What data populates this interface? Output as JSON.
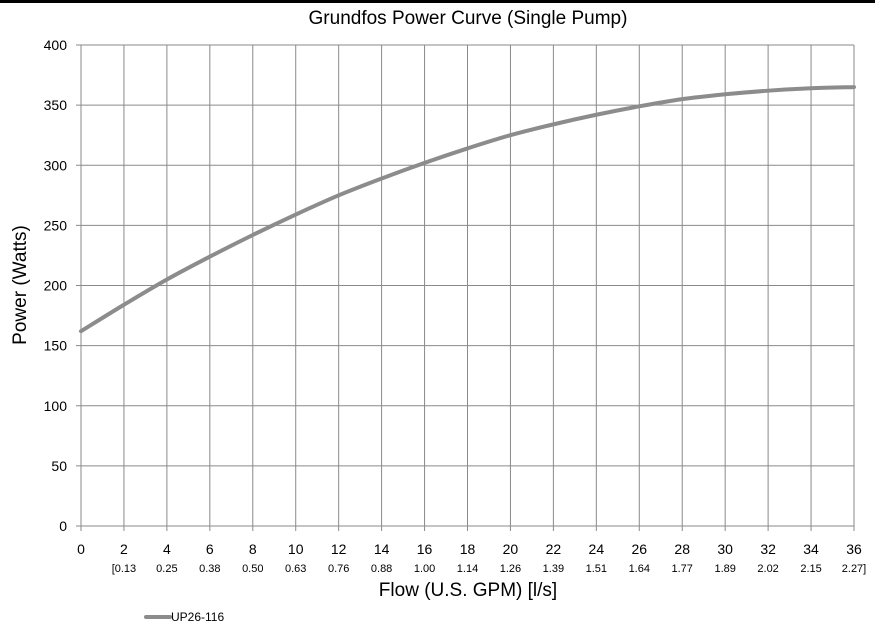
{
  "chart_data": {
    "type": "line",
    "title": "Grundfos Power Curve (Single Pump)",
    "xlabel": "Flow (U.S. GPM) [l/s]",
    "ylabel": "Power (Watts)",
    "xlim": [
      0,
      36
    ],
    "ylim": [
      0,
      400
    ],
    "grid": true,
    "legend_position": "bottom-left",
    "x_ticks": [
      0,
      2,
      4,
      6,
      8,
      10,
      12,
      14,
      16,
      18,
      20,
      22,
      24,
      26,
      28,
      30,
      32,
      34,
      36
    ],
    "x_secondary_ticks": [
      "[0.13",
      "0.25",
      "0.38",
      "0.50",
      "0.63",
      "0.76",
      "0.88",
      "1.00",
      "1.14",
      "1.26",
      "1.39",
      "1.51",
      "1.64",
      "1.77",
      "1.89",
      "2.02",
      "2.15",
      "2.27]"
    ],
    "y_ticks": [
      0,
      50,
      100,
      150,
      200,
      250,
      300,
      350,
      400
    ],
    "series": [
      {
        "name": "UP26-116",
        "color": "#8c8c8c",
        "x": [
          0,
          2,
          4,
          6,
          8,
          10,
          12,
          14,
          16,
          18,
          20,
          22,
          24,
          26,
          28,
          30,
          32,
          34,
          36
        ],
        "y": [
          162,
          184,
          205,
          224,
          242,
          259,
          275,
          289,
          302,
          314,
          325,
          334,
          342,
          349,
          355,
          359,
          362,
          364,
          365
        ]
      }
    ]
  }
}
